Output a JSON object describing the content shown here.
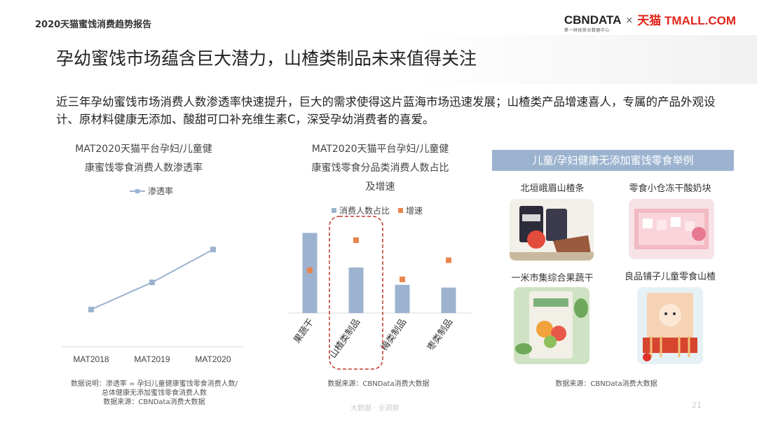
{
  "header": {
    "report_title": "2020天猫蜜饯消费趋势报告",
    "logo_cbndata": "CBNDATA",
    "logo_cbndata_sub": "第一财经商业数据中心",
    "logo_times": "×",
    "logo_tmall": "天猫 TMALL.COM"
  },
  "main": {
    "title": "孕幼蜜饯市场蕴含巨大潜力，山楂类制品未来值得关注",
    "description": "近三年孕幼蜜饯市场消费人数渗透率快速提升，巨大的需求使得这片蓝海市场迅速发展；山楂类产品增速喜人，专属的产品外观设计、原材料健康无添加、酸甜可口补充维生素C，深受孕幼消费者的喜爱。"
  },
  "chart1": {
    "title_line1": "MAT2020天猫平台孕妇/儿童健",
    "title_line2": "康蜜饯零食消费人数渗透率",
    "source_line1": "数据说明：渗透率 = 孕妇儿童健康蜜饯零食消费人数/",
    "source_line2": "总体健康无添加蜜饯零食消费人数",
    "source_line3": "数据来源：CBNData消费大数据"
  },
  "chart2": {
    "title_line1": "MAT2020天猫平台孕妇/儿童健",
    "title_line2": "康蜜饯零食分品类消费人数占比",
    "title_line3": "及增速",
    "source": "数据来源：CBNData消费大数据"
  },
  "examples": {
    "header": "儿童/孕妇健康无添加蜜饯零食举例",
    "products": [
      {
        "label": "北垣峨眉山楂条"
      },
      {
        "label": "零食小仓冻干酸奶块"
      },
      {
        "label": "一米市集综合果蔬干"
      },
      {
        "label": "良品铺子儿童零食山楂"
      }
    ],
    "source": "数据来源：CBNData消费大数据"
  },
  "footer": {
    "watermark": "大数据 · 全洞察",
    "page": "21"
  },
  "chart_data": [
    {
      "type": "line",
      "categories": [
        "MAT2018",
        "MAT2019",
        "MAT2020"
      ],
      "series": [
        {
          "name": "渗透率",
          "values": [
            0.26,
            0.45,
            0.68
          ],
          "color": "#9cb3cf"
        }
      ],
      "ylim": [
        0,
        1
      ],
      "grid": false,
      "legend": "top"
    },
    {
      "type": "bar",
      "categories": [
        "果蔬干",
        "山楂类制品",
        "梅类制品",
        "枣类制品"
      ],
      "series": [
        {
          "name": "消费人数占比",
          "values": [
            0.88,
            0.5,
            0.31,
            0.28
          ],
          "color": "#9cb3cf"
        },
        {
          "name": "增速",
          "values": [
            0.47,
            0.8,
            0.37,
            0.58
          ],
          "color": "#e8854e"
        }
      ],
      "ylim": [
        0,
        1
      ],
      "grid": false,
      "legend": "top",
      "highlight_category": "山楂类制品"
    }
  ]
}
